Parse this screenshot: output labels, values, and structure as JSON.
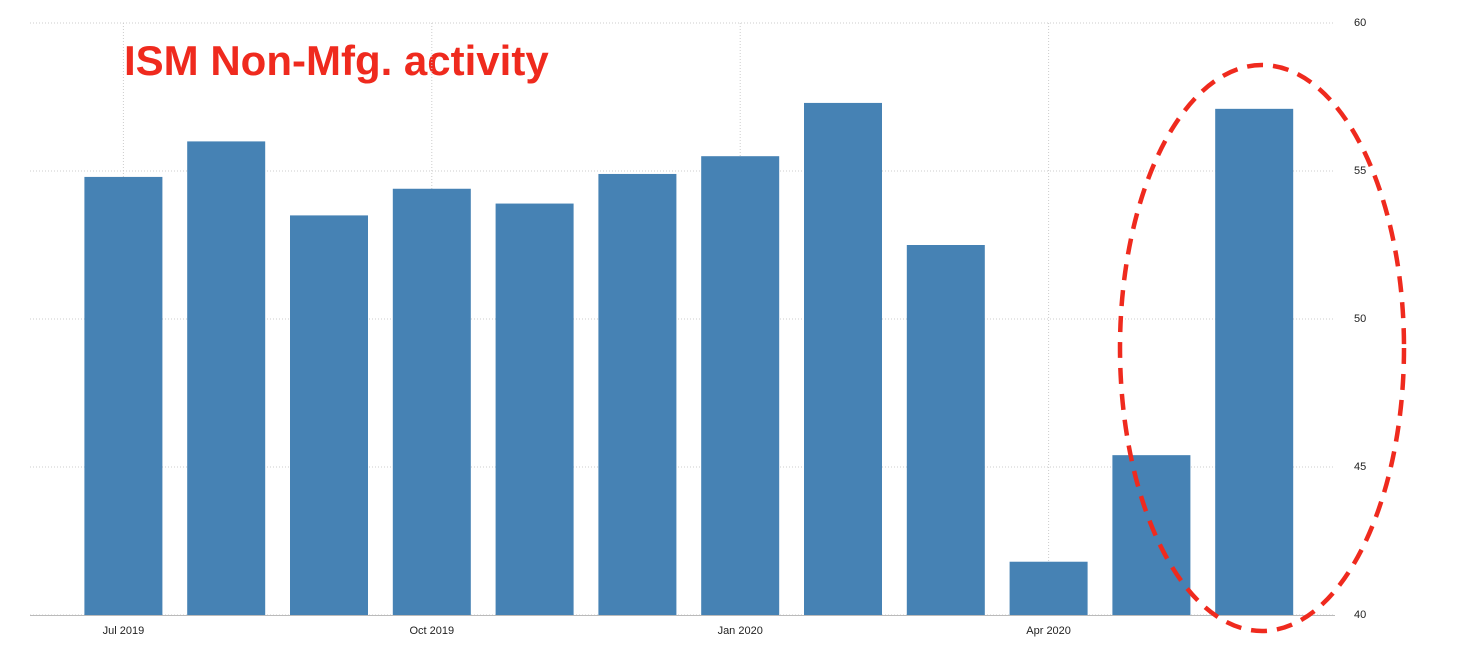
{
  "chart_data": {
    "type": "bar",
    "title": "ISM Non-Mfg. activity",
    "categories": [
      "Jul 2019",
      null,
      null,
      "Oct 2019",
      null,
      null,
      "Jan 2020",
      null,
      null,
      "Apr 2020",
      null,
      null
    ],
    "values": [
      54.8,
      56.0,
      53.5,
      54.4,
      53.9,
      54.9,
      55.5,
      57.3,
      52.5,
      41.8,
      45.4,
      57.1
    ],
    "color": "#4682b4",
    "ylim": [
      40,
      60
    ],
    "yticks": [
      40,
      45,
      50,
      55,
      60
    ],
    "grid": true
  }
}
